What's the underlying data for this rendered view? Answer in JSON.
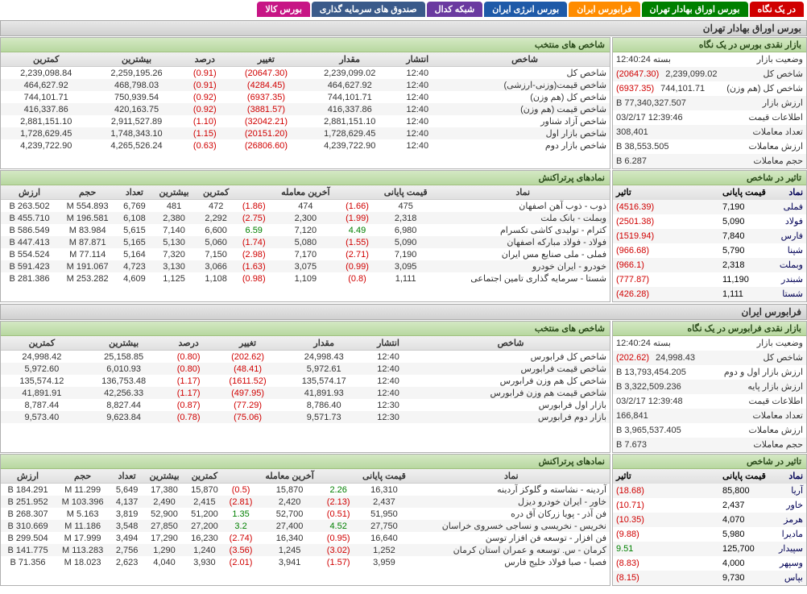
{
  "tabs": [
    {
      "label": "در یک نگاه",
      "bg": "#d00000"
    },
    {
      "label": "بورس اوراق بهادار تهران",
      "bg": "#008000"
    },
    {
      "label": "فرابورس ایران",
      "bg": "#ff8c00"
    },
    {
      "label": "بورس انرژی ایران",
      "bg": "#1e5aa8"
    },
    {
      "label": "شبکه کدال",
      "bg": "#6a3aa0"
    },
    {
      "label": "صندوق های سرمایه گذاری",
      "bg": "#3a5a8a"
    },
    {
      "label": "بورس کالا",
      "bg": "#c71585"
    }
  ],
  "tse": {
    "title": "بورس اوراق بهادار تهران",
    "glance": {
      "header": "بازار نقدی بورس در یک نگاه",
      "rows": [
        {
          "label": "وضعیت بازار",
          "value": "بسته 12:40:24",
          "cls": ""
        },
        {
          "label": "شاخص کل",
          "value": "2,239,099.02",
          "value2": "(20647.30)",
          "cls2": "neg"
        },
        {
          "label": "شاخص کل (هم وزن)",
          "value": "744,101.71",
          "value2": "(6937.35)",
          "cls2": "neg"
        },
        {
          "label": "ارزش بازار",
          "value": "77,340,327.507 B",
          "cls": ""
        },
        {
          "label": "اطلاعات قیمت",
          "value": "12:39:46 03/2/17",
          "cls": ""
        },
        {
          "label": "تعداد معاملات",
          "value": "308,401",
          "cls": ""
        },
        {
          "label": "ارزش معاملات",
          "value": "38,553.505 B",
          "cls": ""
        },
        {
          "label": "حجم معاملات",
          "value": "6.287 B",
          "cls": ""
        }
      ]
    },
    "impact": {
      "header": "تاثیر در شاخص",
      "cols": [
        "نماد",
        "قیمت پایانی",
        "تاثیر"
      ],
      "rows": [
        {
          "sym": "فملی",
          "price": "7,190",
          "eff": "(4516.39)",
          "cls": "neg"
        },
        {
          "sym": "فولاد",
          "price": "5,090",
          "eff": "(2501.38)",
          "cls": "neg"
        },
        {
          "sym": "فارس",
          "price": "7,840",
          "eff": "(1519.94)",
          "cls": "neg"
        },
        {
          "sym": "شپنا",
          "price": "5,790",
          "eff": "(966.68)",
          "cls": "neg"
        },
        {
          "sym": "وبملت",
          "price": "2,318",
          "eff": "(966.1)",
          "cls": "neg"
        },
        {
          "sym": "شبندر",
          "price": "11,190",
          "eff": "(777.87)",
          "cls": "neg"
        },
        {
          "sym": "شستا",
          "price": "1,111",
          "eff": "(426.28)",
          "cls": "neg"
        }
      ]
    },
    "indices": {
      "header": "شاخص های منتخب",
      "cols": [
        "شاخص",
        "انتشار",
        "مقدار",
        "تغییر",
        "درصد",
        "بیشترین",
        "کمترین"
      ],
      "rows": [
        [
          "شاخص کل",
          "12:40",
          "2,239,099.02",
          "(20647.30)",
          "(0.91)",
          "2,259,195.26",
          "2,239,098.84"
        ],
        [
          "شاخص قیمت(وزنی-ارزشی)",
          "12:40",
          "464,627.92",
          "(4284.45)",
          "(0.91)",
          "468,798.03",
          "464,627.92"
        ],
        [
          "شاخص کل (هم وزن)",
          "12:40",
          "744,101.71",
          "(6937.35)",
          "(0.92)",
          "750,939.54",
          "744,101.71"
        ],
        [
          "شاخص قیمت (هم وزن)",
          "12:40",
          "416,337.86",
          "(3881.57)",
          "(0.92)",
          "420,163.75",
          "416,337.86"
        ],
        [
          "شاخص آزاد شناور",
          "12:40",
          "2,881,151.10",
          "(32042.21)",
          "(1.10)",
          "2,911,527.89",
          "2,881,151.10"
        ],
        [
          "شاخص بازار اول",
          "12:40",
          "1,728,629.45",
          "(20151.20)",
          "(1.15)",
          "1,748,343.10",
          "1,728,629.45"
        ],
        [
          "شاخص بازار دوم",
          "12:40",
          "4,239,722.90",
          "(26806.60)",
          "(0.63)",
          "4,265,526.24",
          "4,239,722.90"
        ]
      ]
    },
    "top": {
      "header": "نمادهای پرتراکنش",
      "cols": [
        "نماد",
        "قیمت پایانی",
        "",
        "آخرین معامله",
        "",
        "کمترین",
        "بیشترین",
        "تعداد",
        "حجم",
        "ارزش"
      ],
      "rows": [
        [
          "ذوب - ذوب آهن اصفهان",
          "475",
          "(1.66)",
          "474",
          "(1.86)",
          "472",
          "481",
          "6,769",
          "554.893 M",
          "263.502 B"
        ],
        [
          "وبملت - بانک ملت",
          "2,318",
          "(1.99)",
          "2,300",
          "(2.75)",
          "2,292",
          "2,380",
          "6,108",
          "196.581 M",
          "455.710 B"
        ],
        [
          "کترام - تولیدی کاشی تکسرام",
          "6,980",
          "4.49",
          "7,120",
          "6.59",
          "6,600",
          "7,140",
          "5,615",
          "83.984 M",
          "586.549 B"
        ],
        [
          "فولاد - فولاد مبارکه اصفهان",
          "5,090",
          "(1.55)",
          "5,080",
          "(1.74)",
          "5,060",
          "5,130",
          "5,165",
          "87.871 M",
          "447.413 B"
        ],
        [
          "فملی - ملی صنایع مس ایران",
          "7,190",
          "(2.71)",
          "7,170",
          "(2.98)",
          "7,150",
          "7,320",
          "5,164",
          "77.114 M",
          "554.524 B"
        ],
        [
          "خودرو - ایران خودرو",
          "3,095",
          "(0.99)",
          "3,075",
          "(1.63)",
          "3,066",
          "3,130",
          "4,723",
          "191.067 M",
          "591.423 B"
        ],
        [
          "شستا - سرمایه گذاری تامین اجتماعی",
          "1,111",
          "(0.8)",
          "1,109",
          "(0.98)",
          "1,108",
          "1,125",
          "4,609",
          "253.282 M",
          "281.386 B"
        ]
      ]
    }
  },
  "ifb": {
    "title": "فرابورس ایران",
    "glance": {
      "header": "بازار نقدی فرابورس در یک نگاه",
      "rows": [
        {
          "label": "وضعیت بازار",
          "value": "بسته 12:40:24"
        },
        {
          "label": "شاخص کل",
          "value": "24,998.43",
          "value2": "(202.62)",
          "cls2": "neg"
        },
        {
          "label": "ارزش بازار اول و دوم",
          "value": "13,793,454.205 B"
        },
        {
          "label": "ارزش بازار پایه",
          "value": "3,322,509.236 B"
        },
        {
          "label": "اطلاعات قیمت",
          "value": "12:39:48 03/2/17"
        },
        {
          "label": "تعداد معاملات",
          "value": "166,841"
        },
        {
          "label": "ارزش معاملات",
          "value": "3,965,537.405 B"
        },
        {
          "label": "حجم معاملات",
          "value": "7.673 B"
        }
      ]
    },
    "impact": {
      "header": "تاثیر در شاخص",
      "cols": [
        "نماد",
        "قیمت پایانی",
        "تاثیر"
      ],
      "rows": [
        {
          "sym": "آریا",
          "price": "85,800",
          "eff": "(18.68)",
          "cls": "neg"
        },
        {
          "sym": "خاور",
          "price": "2,437",
          "eff": "(10.71)",
          "cls": "neg"
        },
        {
          "sym": "هرمز",
          "price": "4,070",
          "eff": "(10.35)",
          "cls": "neg"
        },
        {
          "sym": "مادیرا",
          "price": "5,980",
          "eff": "(9.88)",
          "cls": "neg"
        },
        {
          "sym": "سپیدار",
          "price": "125,700",
          "eff": "9.51",
          "cls": "pos"
        },
        {
          "sym": "وسپهر",
          "price": "4,000",
          "eff": "(8.83)",
          "cls": "neg"
        },
        {
          "sym": "بپاس",
          "price": "9,730",
          "eff": "(8.15)",
          "cls": "neg"
        }
      ]
    },
    "indices": {
      "header": "شاخص های منتخب",
      "cols": [
        "شاخص",
        "انتشار",
        "مقدار",
        "تغییر",
        "درصد",
        "بیشترین",
        "کمترین"
      ],
      "rows": [
        [
          "شاخص کل فرابورس",
          "12:40",
          "24,998.43",
          "(202.62)",
          "(0.80)",
          "25,158.85",
          "24,998.42"
        ],
        [
          "شاخص قیمت فرابورس",
          "12:40",
          "5,972.61",
          "(48.41)",
          "(0.80)",
          "6,010.93",
          "5,972.60"
        ],
        [
          "شاخص کل هم وزن فرابورس",
          "12:40",
          "135,574.17",
          "(1611.52)",
          "(1.17)",
          "136,753.48",
          "135,574.12"
        ],
        [
          "شاخص قیمت هم وزن فرابورس",
          "12:40",
          "41,891.93",
          "(497.95)",
          "(1.17)",
          "42,256.33",
          "41,891.91"
        ],
        [
          "بازار اول فرابورس",
          "12:30",
          "8,786.40",
          "(77.29)",
          "(0.87)",
          "8,827.44",
          "8,787.44"
        ],
        [
          "بازار دوم فرابورس",
          "12:30",
          "9,571.73",
          "(75.06)",
          "(0.78)",
          "9,623.84",
          "9,573.40"
        ]
      ]
    },
    "top": {
      "header": "نمادهای پرتراکنش",
      "cols": [
        "نماد",
        "قیمت پایانی",
        "",
        "آخرین معامله",
        "",
        "کمترین",
        "بیشترین",
        "تعداد",
        "حجم",
        "ارزش"
      ],
      "rows": [
        [
          "آردینه - نشاسته و گلوکز آردینه",
          "16,310",
          "2.26",
          "15,870",
          "(0.5)",
          "15,870",
          "17,380",
          "5,649",
          "11.299 M",
          "184.291 B"
        ],
        [
          "خاور - ایران خودرو دیزل",
          "2,437",
          "(2.13)",
          "2,420",
          "(2.81)",
          "2,415",
          "2,490",
          "4,137",
          "103.396 M",
          "251.952 B"
        ],
        [
          "فن آذر - پویا زرکان آق دره",
          "51,950",
          "(0.51)",
          "52,700",
          "1.35",
          "51,200",
          "52,900",
          "3,819",
          "5.163 M",
          "268.307 B"
        ],
        [
          "نخریس - نخریسی و نساجی خسروی خراسان",
          "27,750",
          "4.52",
          "27,400",
          "3.2",
          "27,200",
          "27,850",
          "3,548",
          "11.186 M",
          "310.669 B"
        ],
        [
          "فن افزار - توسعه فن افزار توسن",
          "16,640",
          "(0.95)",
          "16,340",
          "(2.74)",
          "16,230",
          "17,290",
          "3,494",
          "17.999 M",
          "299.504 B"
        ],
        [
          "کرمان - س. توسعه و عمران استان کرمان",
          "1,252",
          "(3.02)",
          "1,245",
          "(3.56)",
          "1,240",
          "1,290",
          "2,756",
          "113.283 M",
          "141.775 B"
        ],
        [
          "فصبا - صبا فولاد خلیج فارس",
          "3,959",
          "(1.57)",
          "3,941",
          "(2.01)",
          "3,930",
          "4,040",
          "2,623",
          "18.023 M",
          "71.356 B"
        ]
      ]
    }
  }
}
